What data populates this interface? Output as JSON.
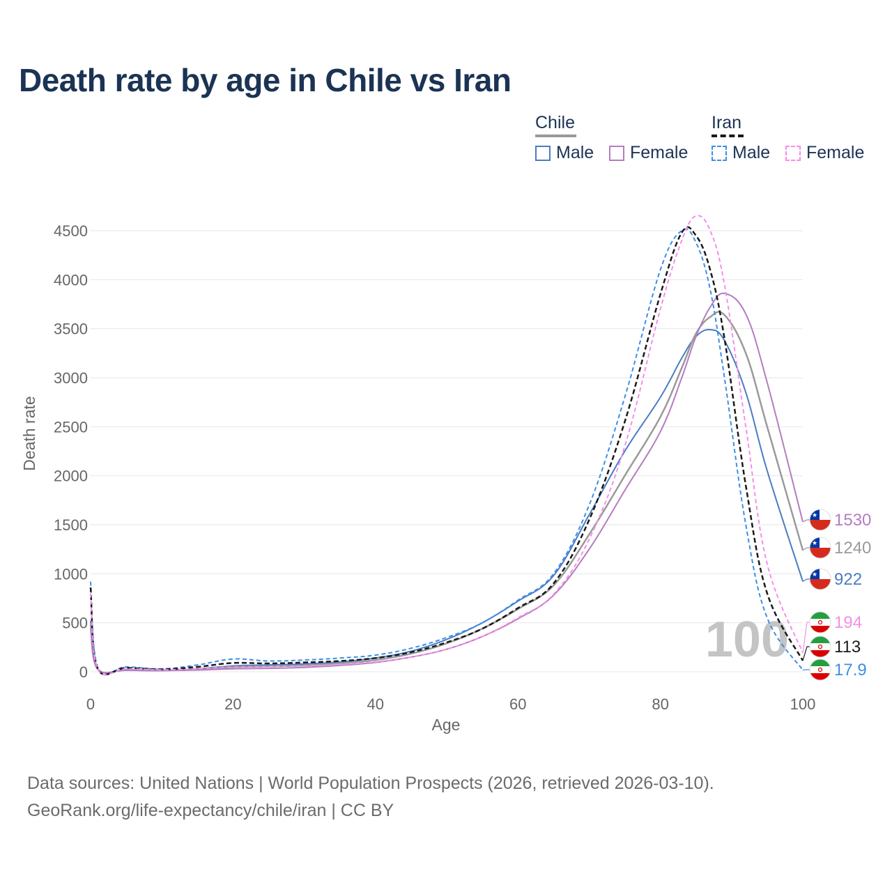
{
  "title": "Death rate by age in Chile vs Iran",
  "legend": {
    "chile": {
      "label": "Chile",
      "male": "Male",
      "female": "Female"
    },
    "iran": {
      "label": "Iran",
      "male": "Male",
      "female": "Female"
    }
  },
  "footer": {
    "line1": "Data sources: United Nations | World Population Prospects (2026, retrieved 2026-03-10).",
    "line2": "GeoRank.org/life-expectancy/chile/iran | CC BY"
  },
  "colors": {
    "chile_male": "#4a7cc2",
    "chile_female": "#b57cc0",
    "chile_total": "#9a9a9a",
    "iran_male": "#3b8fe8",
    "iran_female": "#f58ee8",
    "iran_total": "#1a1a1a",
    "title": "#1b3354"
  },
  "chart_data": {
    "type": "line",
    "title": "Death rate by age in Chile vs Iran",
    "xlabel": "Age",
    "ylabel": "Death rate",
    "xlim": [
      0,
      100
    ],
    "ylim": [
      0,
      4700
    ],
    "x_ticks": [
      0,
      20,
      40,
      60,
      80,
      100
    ],
    "y_ticks": [
      0,
      500,
      1000,
      1500,
      2000,
      2500,
      3000,
      3500,
      4000,
      4500
    ],
    "year_label": "100",
    "x": [
      0,
      1,
      5,
      10,
      15,
      20,
      25,
      30,
      35,
      40,
      45,
      50,
      55,
      60,
      65,
      70,
      75,
      80,
      83,
      85,
      87,
      89,
      92,
      95,
      100
    ],
    "series": [
      {
        "key": "chile_male",
        "name": "Chile Male",
        "dash": "solid",
        "flag": "chile",
        "end_label": "922",
        "values": [
          520,
          30,
          20,
          15,
          30,
          60,
          70,
          80,
          100,
          140,
          210,
          330,
          500,
          720,
          980,
          1600,
          2250,
          2800,
          3200,
          3420,
          3490,
          3380,
          2850,
          2050,
          922
        ]
      },
      {
        "key": "chile_total",
        "name": "Chile Total",
        "dash": "solid",
        "flag": "chile",
        "end_label": "1240",
        "values": [
          480,
          28,
          18,
          14,
          25,
          48,
          55,
          65,
          85,
          120,
          185,
          290,
          440,
          640,
          880,
          1400,
          2000,
          2600,
          3100,
          3450,
          3620,
          3640,
          3250,
          2500,
          1240
        ]
      },
      {
        "key": "chile_female",
        "name": "Chile Female",
        "dash": "solid",
        "flag": "chile",
        "end_label": "1530",
        "values": [
          440,
          25,
          15,
          12,
          18,
          30,
          35,
          45,
          65,
          95,
          150,
          230,
          360,
          540,
          780,
          1250,
          1850,
          2450,
          3000,
          3420,
          3720,
          3860,
          3650,
          2950,
          1530
        ]
      },
      {
        "key": "iran_male",
        "name": "Iran Male",
        "dash": "dashed",
        "flag": "iran",
        "end_label": "17.9",
        "values": [
          920,
          40,
          50,
          30,
          70,
          130,
          110,
          120,
          140,
          170,
          240,
          350,
          500,
          730,
          1000,
          1700,
          2800,
          4100,
          4500,
          4380,
          3900,
          3000,
          1500,
          550,
          17.9
        ]
      },
      {
        "key": "iran_total",
        "name": "Iran Total",
        "dash": "dashed",
        "flag": "iran",
        "end_label": "113",
        "values": [
          860,
          35,
          40,
          25,
          50,
          90,
          85,
          95,
          110,
          140,
          200,
          300,
          440,
          650,
          900,
          1550,
          2550,
          3850,
          4480,
          4450,
          4100,
          3400,
          1900,
          800,
          113
        ]
      },
      {
        "key": "iran_female",
        "name": "Iran Female",
        "dash": "dashed",
        "flag": "iran",
        "end_label": "194",
        "values": [
          800,
          30,
          30,
          20,
          30,
          50,
          55,
          60,
          75,
          100,
          150,
          230,
          360,
          550,
          790,
          1350,
          2300,
          3700,
          4400,
          4650,
          4500,
          3950,
          2500,
          1100,
          194
        ]
      }
    ]
  }
}
